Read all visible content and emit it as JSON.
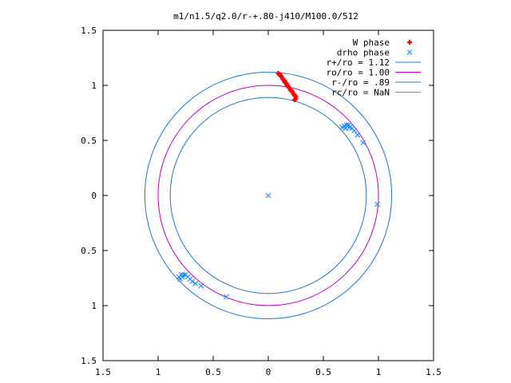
{
  "chart_data": {
    "type": "scatter",
    "title": "m1/n1.5/q2.0/r-+.80-j410/M100.0/512",
    "xlabel": "",
    "ylabel": "",
    "xlim": [
      -1.5,
      1.5
    ],
    "ylim": [
      -1.5,
      1.5
    ],
    "x_ticks": [
      "1.5",
      "1",
      "0.5",
      "0",
      "0.5",
      "1",
      "1.5"
    ],
    "y_ticks": [
      "1.5",
      "1",
      "0.5",
      "0",
      "0.5",
      "1",
      "1.5"
    ],
    "grid": false,
    "legend_position": "top-right",
    "series": [
      {
        "name": "W phase",
        "kind": "points",
        "marker": "plus",
        "color": "#ff0000",
        "points": [
          [
            0.09,
            1.11
          ],
          [
            0.1,
            1.1
          ],
          [
            0.11,
            1.09
          ],
          [
            0.12,
            1.08
          ],
          [
            0.13,
            1.06
          ],
          [
            0.14,
            1.05
          ],
          [
            0.15,
            1.04
          ],
          [
            0.15,
            1.03
          ],
          [
            0.16,
            1.02
          ],
          [
            0.17,
            1.01
          ],
          [
            0.17,
            1.0
          ],
          [
            0.18,
            0.99
          ],
          [
            0.19,
            0.98
          ],
          [
            0.2,
            0.96
          ],
          [
            0.21,
            0.95
          ],
          [
            0.22,
            0.94
          ],
          [
            0.23,
            0.92
          ],
          [
            0.24,
            0.91
          ],
          [
            0.25,
            0.9
          ],
          [
            0.25,
            0.88
          ],
          [
            0.24,
            0.87
          ]
        ]
      },
      {
        "name": "drho phase",
        "kind": "points",
        "marker": "cross",
        "color": "#1e90ff",
        "points": [
          [
            0.67,
            0.62
          ],
          [
            0.69,
            0.63
          ],
          [
            0.71,
            0.64
          ],
          [
            0.73,
            0.64
          ],
          [
            0.7,
            0.61
          ],
          [
            0.72,
            0.63
          ],
          [
            0.74,
            0.62
          ],
          [
            0.76,
            0.61
          ],
          [
            0.78,
            0.59
          ],
          [
            0.81,
            0.55
          ],
          [
            0.86,
            0.48
          ],
          [
            0.99,
            -0.08
          ],
          [
            -0.8,
            -0.76
          ],
          [
            -0.81,
            -0.74
          ],
          [
            -0.79,
            -0.72
          ],
          [
            -0.77,
            -0.72
          ],
          [
            -0.75,
            -0.72
          ],
          [
            -0.78,
            -0.74
          ],
          [
            -0.73,
            -0.74
          ],
          [
            -0.71,
            -0.76
          ],
          [
            -0.69,
            -0.78
          ],
          [
            -0.66,
            -0.8
          ],
          [
            -0.61,
            -0.82
          ],
          [
            -0.38,
            -0.92
          ],
          [
            0.0,
            0.0
          ]
        ]
      },
      {
        "name": "r+/ro = 1.12",
        "kind": "circle",
        "radius": 1.12,
        "color": "#1f78c8"
      },
      {
        "name": "ro/ro = 1.00",
        "kind": "circle",
        "radius": 1.0,
        "color": "#c000c0"
      },
      {
        "name": "r-/ro = .89",
        "kind": "circle",
        "radius": 0.89,
        "color": "#1f78c8"
      },
      {
        "name": "rc/ro = NaN",
        "kind": "circle",
        "radius": null,
        "color": "#00c0d0"
      }
    ]
  }
}
